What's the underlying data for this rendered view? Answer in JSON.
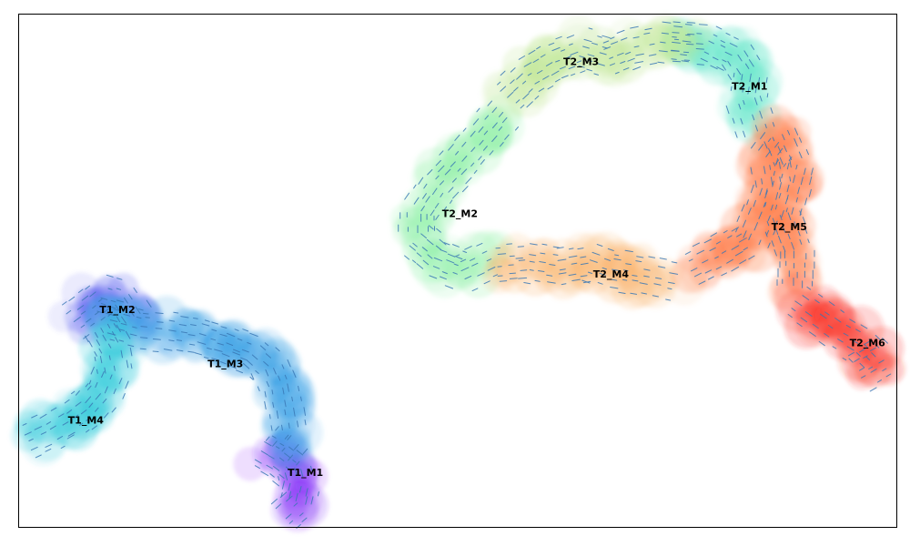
{
  "chart_data": {
    "type": "scatter",
    "title": "",
    "xlabel": "",
    "ylabel": "",
    "xlim": [
      0,
      100
    ],
    "ylim": [
      0,
      100
    ],
    "grid": false,
    "legend": "none",
    "arrow_color": "#3a78b5",
    "clusters": [
      {
        "name": "T1_M1",
        "color": "#7a1ff5",
        "label_pos": [
          32.7,
          10.6
        ],
        "path": [
          [
            28.0,
            14.5
          ],
          [
            30.0,
            12.5
          ],
          [
            31.5,
            10.5
          ],
          [
            32.0,
            7.5
          ],
          [
            31.5,
            4.0
          ],
          [
            30.5,
            2.5
          ]
        ]
      },
      {
        "name": "T1_M2",
        "color": "#5a5ef0",
        "label_pos": [
          11.3,
          42.4
        ],
        "path": [
          [
            6.5,
            40.5
          ],
          [
            8.5,
            43.0
          ],
          [
            10.0,
            45.0
          ],
          [
            12.0,
            44.0
          ],
          [
            13.0,
            41.5
          ]
        ]
      },
      {
        "name": "T1_M3",
        "color": "#2e9be4",
        "label_pos": [
          23.6,
          31.8
        ],
        "path": [
          [
            11.0,
            40.0
          ],
          [
            14.5,
            38.5
          ],
          [
            17.5,
            38.0
          ],
          [
            21.0,
            37.0
          ],
          [
            24.0,
            35.5
          ],
          [
            27.0,
            33.5
          ],
          [
            29.0,
            30.5
          ],
          [
            30.0,
            26.5
          ],
          [
            30.5,
            22.0
          ],
          [
            31.0,
            17.0
          ],
          [
            30.0,
            15.0
          ]
        ]
      },
      {
        "name": "T1_M4",
        "color": "#2bc9d9",
        "label_pos": [
          7.7,
          20.8
        ],
        "path": [
          [
            1.5,
            17.0
          ],
          [
            4.0,
            19.0
          ],
          [
            6.5,
            21.5
          ],
          [
            8.5,
            24.0
          ],
          [
            10.0,
            27.0
          ],
          [
            11.0,
            31.0
          ],
          [
            10.5,
            35.5
          ],
          [
            9.5,
            38.5
          ]
        ]
      },
      {
        "name": "T2_M1",
        "color": "#59e4c6",
        "label_pos": [
          83.3,
          85.9
        ],
        "path": [
          [
            75.0,
            94.5
          ],
          [
            79.0,
            94.0
          ],
          [
            82.0,
            91.5
          ],
          [
            83.5,
            87.5
          ],
          [
            83.0,
            82.5
          ],
          [
            84.0,
            77.5
          ]
        ]
      },
      {
        "name": "T2_M2",
        "color": "#8ef0a6",
        "label_pos": [
          50.3,
          61.1
        ],
        "path": [
          [
            55.0,
            80.0
          ],
          [
            52.5,
            75.0
          ],
          [
            50.0,
            70.0
          ],
          [
            47.5,
            65.5
          ],
          [
            45.5,
            60.5
          ],
          [
            45.5,
            55.5
          ],
          [
            48.0,
            52.0
          ],
          [
            51.0,
            50.0
          ],
          [
            53.5,
            52.0
          ]
        ]
      },
      {
        "name": "T2_M3",
        "color": "#c1e798",
        "label_pos": [
          64.1,
          90.7
        ],
        "path": [
          [
            56.0,
            84.0
          ],
          [
            58.5,
            88.0
          ],
          [
            61.5,
            91.0
          ],
          [
            64.5,
            93.0
          ],
          [
            67.5,
            91.5
          ],
          [
            70.5,
            93.5
          ],
          [
            73.5,
            94.5
          ],
          [
            76.0,
            94.0
          ]
        ]
      },
      {
        "name": "T2_M4",
        "color": "#fab36c",
        "label_pos": [
          67.5,
          49.3
        ],
        "path": [
          [
            55.0,
            51.0
          ],
          [
            58.5,
            51.5
          ],
          [
            62.0,
            50.5
          ],
          [
            65.5,
            51.5
          ],
          [
            68.0,
            50.0
          ],
          [
            71.5,
            49.0
          ],
          [
            74.5,
            48.0
          ]
        ]
      },
      {
        "name": "T2_M5",
        "color": "#ff7843",
        "label_pos": [
          87.8,
          58.5
        ],
        "path": [
          [
            77.0,
            50.5
          ],
          [
            80.5,
            53.5
          ],
          [
            83.5,
            56.5
          ],
          [
            85.0,
            62.5
          ],
          [
            86.0,
            67.5
          ],
          [
            85.5,
            72.5
          ],
          [
            87.0,
            76.0
          ],
          [
            88.5,
            70.0
          ],
          [
            87.0,
            60.0
          ],
          [
            88.5,
            53.0
          ],
          [
            88.5,
            47.5
          ]
        ]
      },
      {
        "name": "T2_M6",
        "color": "#f8291d",
        "label_pos": [
          96.7,
          35.9
        ],
        "path": [
          [
            89.0,
            43.5
          ],
          [
            91.5,
            40.5
          ],
          [
            94.0,
            37.5
          ],
          [
            96.5,
            35.0
          ],
          [
            98.0,
            32.5
          ],
          [
            96.0,
            30.5
          ]
        ]
      }
    ]
  }
}
